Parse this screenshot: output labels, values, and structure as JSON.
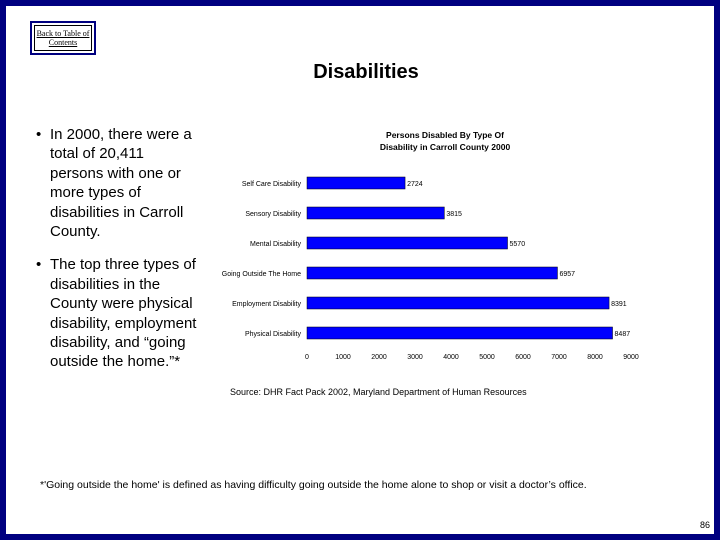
{
  "nav": {
    "back_label": "Back to Table of Contents"
  },
  "slide": {
    "title": "Disabilities",
    "bullets": [
      {
        "text": "In 2000, there were a total of 20,411 persons with one or more types of disabilities in Carroll County."
      },
      {
        "text": "The top three types of disabilities in the County were physical disability, employment disability, and “going outside the home.”*"
      }
    ],
    "source": "Source: DHR Fact Pack 2002, Maryland Department of Human Resources",
    "footnote": "*'Going outside the home' is defined as having difficulty going outside the home alone to shop or visit a doctor’s office.",
    "page_number": "86"
  },
  "colors": {
    "frame": "#000080",
    "bar": "#0000ff",
    "text": "#000000"
  },
  "chart_data": {
    "type": "bar",
    "orientation": "horizontal",
    "title_lines": [
      "Persons Disabled By Type Of",
      "Disability in Carroll County 2000"
    ],
    "categories": [
      "Self Care Disability",
      "Sensory Disability",
      "Mental Disability",
      "Going Outside The Home",
      "Employment Disability",
      "Physical Disability"
    ],
    "values": [
      2724,
      3815,
      5570,
      6957,
      8391,
      8487
    ],
    "xlim": [
      0,
      9000
    ],
    "xticks": [
      0,
      1000,
      2000,
      3000,
      4000,
      5000,
      6000,
      7000,
      8000,
      9000
    ],
    "legend": "none",
    "grid": false
  }
}
